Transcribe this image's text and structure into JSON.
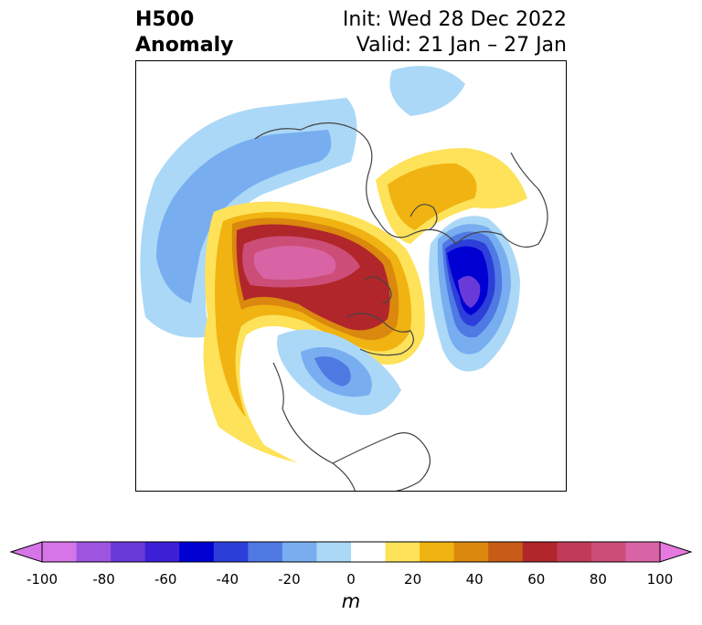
{
  "title": {
    "left_line1": "H500",
    "left_line2": "Anomaly",
    "right_line1": "Init: Wed 28 Dec 2022",
    "right_line2": "Valid: 21 Jan – 27 Jan"
  },
  "colorbar": {
    "unit": "m",
    "ticks": [
      "-100",
      "-80",
      "-60",
      "-40",
      "-20",
      "0",
      "20",
      "40",
      "60",
      "80",
      "100"
    ],
    "colors": [
      "#d675e8",
      "#9d55e0",
      "#6a3ad8",
      "#3d1fd6",
      "#0000d2",
      "#2d3fd9",
      "#4f79e3",
      "#78aef0",
      "#abd8f7",
      "#ffffff",
      "#fde25a",
      "#f0b311",
      "#db880e",
      "#c75b17",
      "#b1262a",
      "#c13a57",
      "#cc4e78",
      "#d864a5"
    ],
    "extend_min_color": "#d675e8",
    "extend_max_color": "#e579de"
  }
}
